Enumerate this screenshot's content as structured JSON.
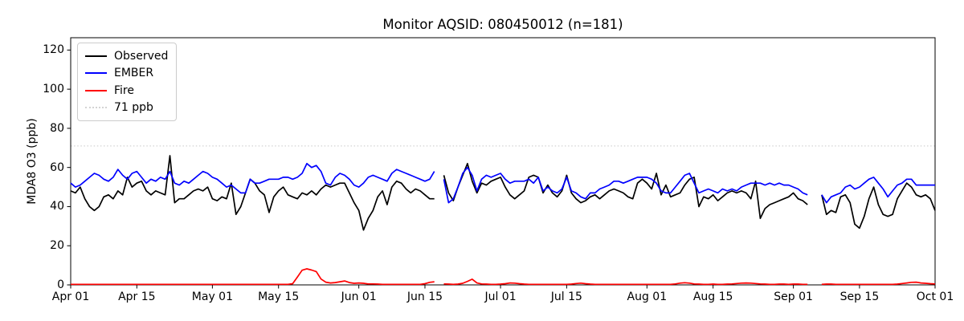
{
  "title": "Monitor AQSID: 080450012 (n=181)",
  "ylabel": "MDA8 O3 (ppb)",
  "legend": {
    "items": [
      {
        "label": "Observed",
        "color": "#000000",
        "style": "solid"
      },
      {
        "label": "EMBER",
        "color": "#0000ff",
        "style": "solid"
      },
      {
        "label": "Fire",
        "color": "#ff0000",
        "style": "solid"
      },
      {
        "label": "71 ppb",
        "color": "#d3d3d3",
        "style": "dotted"
      }
    ]
  },
  "chart_data": {
    "type": "line",
    "title": "Monitor AQSID: 080450012 (n=181)",
    "xlabel": "",
    "ylabel": "MDA8 O3 (ppb)",
    "ylim": [
      0,
      126.3
    ],
    "grid": false,
    "legend_position": "upper left",
    "x_unit": "daily values; index 0 = Apr 01, index 183 = Oct 01; null = missing day",
    "x_tick_labels": [
      "Apr 01",
      "Apr 15",
      "May 01",
      "May 15",
      "Jun 01",
      "Jun 15",
      "Jul 01",
      "Jul 15",
      "Aug 01",
      "Aug 15",
      "Sep 01",
      "Sep 15",
      "Oct 01"
    ],
    "x_tick_day_index": [
      0,
      14,
      30,
      44,
      61,
      75,
      91,
      105,
      122,
      136,
      153,
      167,
      183
    ],
    "y_ticks": [
      0,
      20,
      40,
      60,
      80,
      100,
      120
    ],
    "threshold_line": {
      "label": "71 ppb",
      "value": 71,
      "color": "#d3d3d3",
      "style": "dotted"
    },
    "series": [
      {
        "name": "Observed",
        "color": "#000000",
        "values": [
          48,
          47,
          50,
          44,
          40,
          38,
          40,
          45,
          46,
          44,
          48,
          46,
          55,
          50,
          52,
          53,
          48,
          46,
          48,
          47,
          46,
          66,
          42,
          44,
          44,
          46,
          48,
          49,
          48,
          50,
          44,
          43,
          45,
          44,
          52,
          36,
          40,
          47,
          54,
          52,
          48,
          46,
          37,
          45,
          48,
          50,
          46,
          45,
          44,
          47,
          46,
          48,
          46,
          49,
          51,
          50,
          51,
          52,
          52,
          47,
          42,
          38,
          28,
          34,
          38,
          45,
          48,
          41,
          50,
          53,
          52,
          49,
          47,
          49,
          48,
          46,
          44,
          44,
          null,
          56,
          47,
          43,
          50,
          56,
          62,
          53,
          47,
          52,
          51,
          53,
          54,
          55,
          50,
          46,
          44,
          46,
          48,
          55,
          56,
          55,
          47,
          51,
          47,
          45,
          48,
          56,
          47,
          44,
          42,
          43,
          45,
          46,
          44,
          46,
          48,
          49,
          48,
          47,
          45,
          44,
          52,
          54,
          52,
          49,
          57,
          46,
          51,
          45,
          46,
          47,
          51,
          54,
          55,
          40,
          45,
          44,
          46,
          43,
          45,
          47,
          48,
          47,
          48,
          47,
          44,
          53,
          34,
          39,
          41,
          42,
          43,
          44,
          45,
          47,
          44,
          43,
          41,
          null,
          null,
          46,
          36,
          38,
          37,
          45,
          46,
          42,
          31,
          29,
          35,
          44,
          50,
          41,
          36,
          35,
          36,
          44,
          48,
          52,
          50,
          46,
          45,
          46,
          44,
          38
        ]
      },
      {
        "name": "EMBER",
        "color": "#0000ff",
        "values": [
          52,
          50,
          51,
          53,
          55,
          57,
          56,
          54,
          53,
          55,
          59,
          56,
          54,
          57,
          58,
          55,
          52,
          54,
          53,
          55,
          54,
          58,
          52,
          51,
          53,
          52,
          54,
          56,
          58,
          57,
          55,
          54,
          52,
          50,
          51,
          49,
          47,
          47,
          54,
          52,
          52,
          53,
          54,
          54,
          54,
          55,
          55,
          54,
          55,
          57,
          62,
          60,
          61,
          58,
          52,
          51,
          55,
          57,
          56,
          54,
          51,
          50,
          52,
          55,
          56,
          55,
          54,
          53,
          57,
          59,
          58,
          57,
          56,
          55,
          54,
          53,
          54,
          58,
          null,
          54,
          42,
          44,
          50,
          57,
          60,
          56,
          48,
          54,
          56,
          55,
          56,
          57,
          54,
          52,
          53,
          53,
          53,
          54,
          52,
          55,
          48,
          50,
          48,
          47,
          49,
          55,
          48,
          47,
          45,
          44,
          47,
          47,
          49,
          50,
          51,
          53,
          53,
          52,
          53,
          54,
          55,
          55,
          55,
          54,
          52,
          48,
          47,
          47,
          50,
          53,
          56,
          57,
          52,
          47,
          48,
          49,
          48,
          47,
          49,
          48,
          49,
          48,
          50,
          51,
          52,
          52,
          52,
          51,
          52,
          51,
          52,
          51,
          51,
          50,
          49,
          47,
          46,
          null,
          null,
          46,
          42,
          45,
          46,
          47,
          50,
          51,
          49,
          50,
          52,
          54,
          55,
          52,
          49,
          45,
          48,
          51,
          52,
          54,
          54,
          51,
          51,
          51,
          51,
          51
        ]
      },
      {
        "name": "Fire",
        "color": "#ff0000",
        "values": [
          0.3,
          0.3,
          0.3,
          0.3,
          0.3,
          0.3,
          0.3,
          0.3,
          0.3,
          0.3,
          0.3,
          0.3,
          0.3,
          0.3,
          0.3,
          0.3,
          0.3,
          0.3,
          0.3,
          0.3,
          0.3,
          0.3,
          0.3,
          0.3,
          0.3,
          0.3,
          0.3,
          0.3,
          0.3,
          0.3,
          0.3,
          0.3,
          0.3,
          0.3,
          0.3,
          0.3,
          0.3,
          0.3,
          0.3,
          0.3,
          0.3,
          0.3,
          0.3,
          0.3,
          0.3,
          0.3,
          0.3,
          0.6,
          4.0,
          7.5,
          8.2,
          7.6,
          6.8,
          3.0,
          1.4,
          1.0,
          1.2,
          1.6,
          2.0,
          1.2,
          0.8,
          1.0,
          0.8,
          0.5,
          0.5,
          0.4,
          0.3,
          0.3,
          0.3,
          0.3,
          0.3,
          0.3,
          0.3,
          0.3,
          0.3,
          0.6,
          1.3,
          1.6,
          null,
          0.5,
          0.4,
          0.3,
          0.4,
          0.8,
          1.8,
          2.9,
          1.0,
          0.5,
          0.4,
          0.3,
          0.3,
          0.4,
          0.6,
          1.0,
          0.9,
          0.6,
          0.4,
          0.3,
          0.3,
          0.3,
          0.3,
          0.3,
          0.3,
          0.3,
          0.3,
          0.3,
          0.4,
          0.7,
          0.9,
          0.6,
          0.4,
          0.3,
          0.3,
          0.3,
          0.3,
          0.3,
          0.3,
          0.3,
          0.3,
          0.3,
          0.3,
          0.3,
          0.3,
          0.3,
          0.3,
          0.3,
          0.3,
          0.3,
          0.5,
          0.9,
          1.1,
          0.9,
          0.5,
          0.4,
          0.3,
          0.3,
          0.4,
          0.3,
          0.3,
          0.4,
          0.5,
          0.7,
          0.9,
          1.0,
          0.9,
          0.7,
          0.5,
          0.4,
          0.3,
          0.3,
          0.4,
          0.4,
          0.3,
          0.4,
          0.4,
          0.3,
          0.3,
          null,
          null,
          0.3,
          0.4,
          0.4,
          0.3,
          0.3,
          0.3,
          0.3,
          0.3,
          0.3,
          0.3,
          0.3,
          0.3,
          0.3,
          0.3,
          0.3,
          0.3,
          0.4,
          0.7,
          1.0,
          1.3,
          1.4,
          1.0,
          0.8,
          0.6,
          0.5
        ]
      }
    ]
  }
}
